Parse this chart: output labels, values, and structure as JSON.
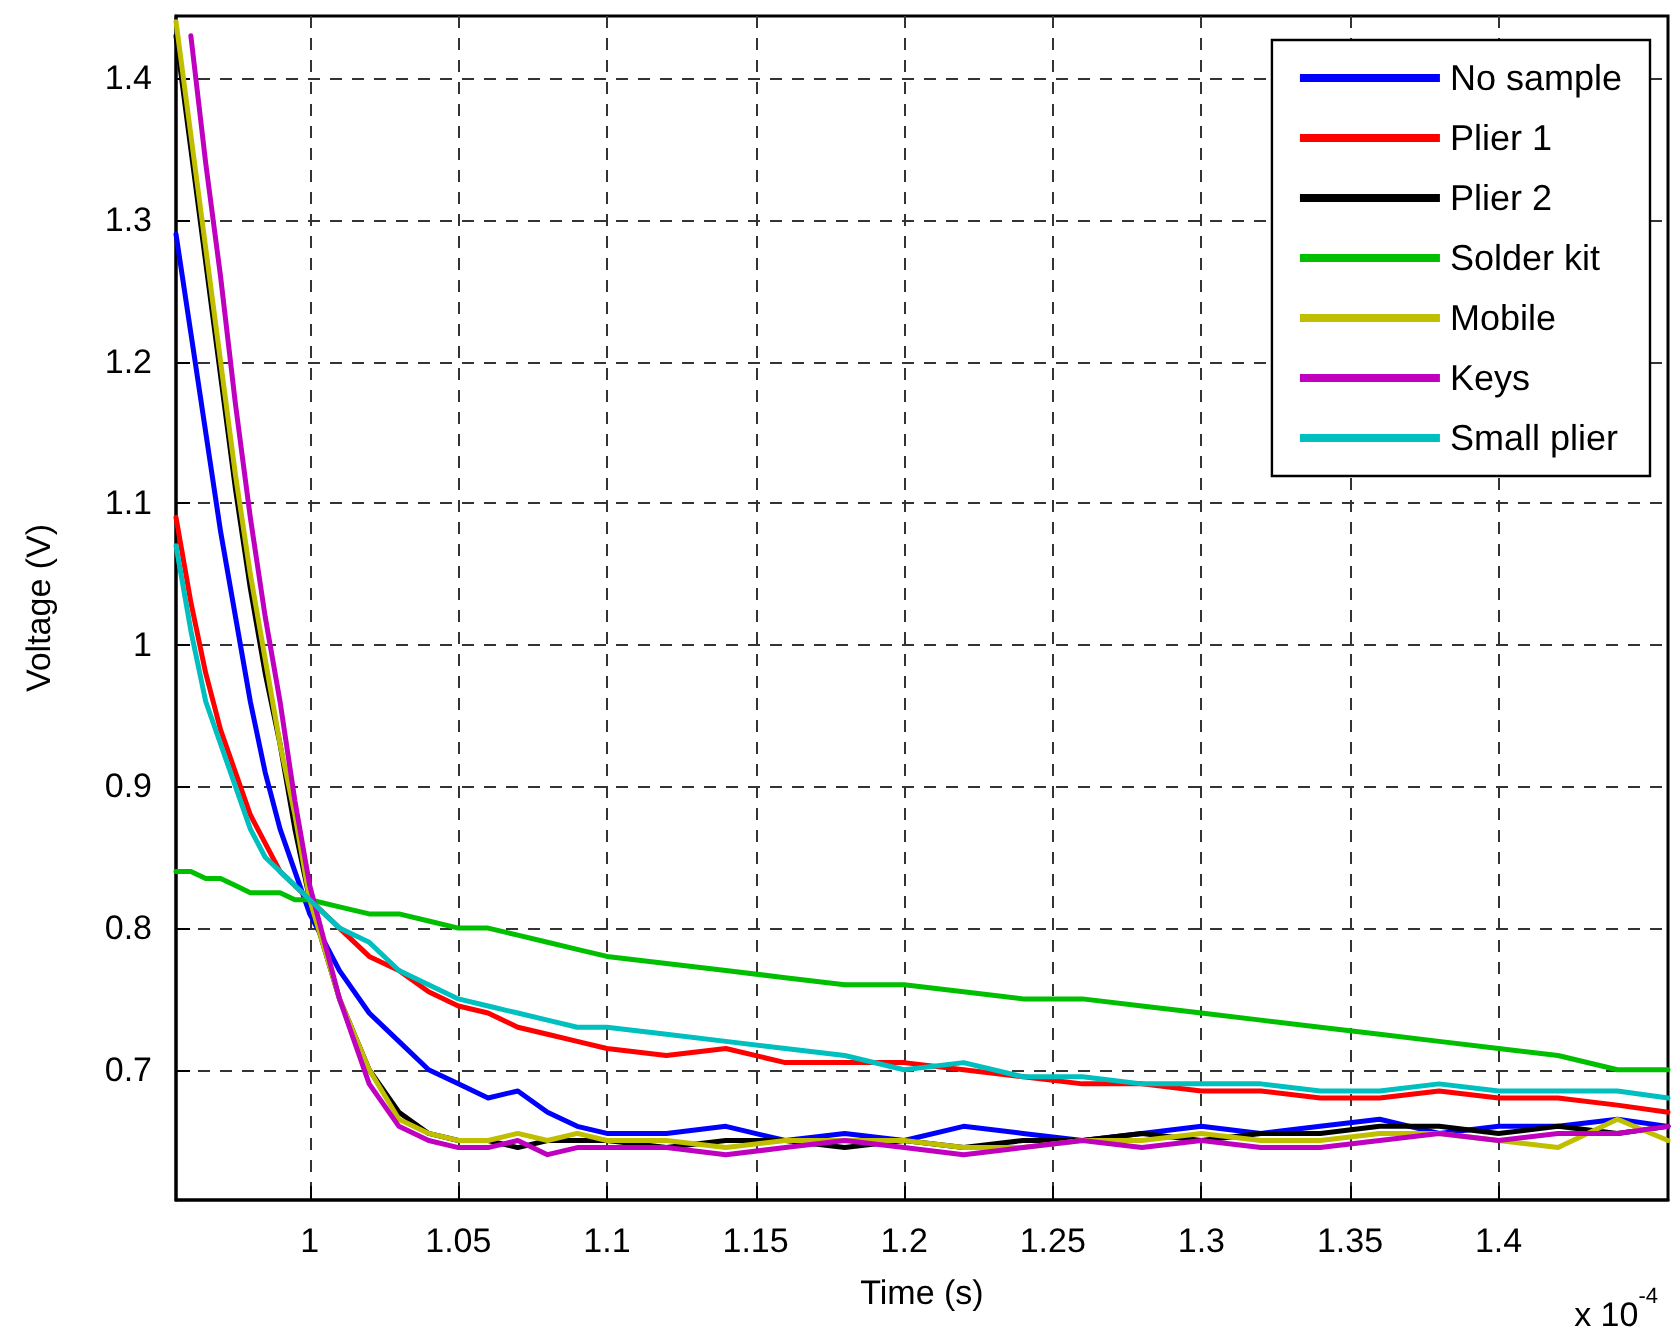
{
  "chart_data": {
    "type": "line",
    "xlabel": "Time (s)",
    "ylabel": "Voltage (V)",
    "annotations": [
      "x 10$^{-4}$"
    ],
    "x": [
      0.955,
      0.96,
      0.965,
      0.97,
      0.975,
      0.98,
      0.985,
      0.99,
      0.995,
      1.0,
      1.01,
      1.02,
      1.03,
      1.04,
      1.05,
      1.06,
      1.07,
      1.08,
      1.09,
      1.1,
      1.12,
      1.14,
      1.16,
      1.18,
      1.2,
      1.22,
      1.24,
      1.26,
      1.28,
      1.3,
      1.32,
      1.34,
      1.36,
      1.38,
      1.4,
      1.42,
      1.44,
      1.457
    ],
    "series": [
      {
        "name": "No sample",
        "color": "#0000ff",
        "values": [
          1.29,
          1.22,
          1.15,
          1.08,
          1.02,
          0.96,
          0.91,
          0.87,
          0.84,
          0.81,
          0.77,
          0.74,
          0.72,
          0.7,
          0.69,
          0.68,
          0.685,
          0.67,
          0.66,
          0.655,
          0.655,
          0.66,
          0.65,
          0.655,
          0.65,
          0.66,
          0.655,
          0.65,
          0.655,
          0.66,
          0.655,
          0.66,
          0.665,
          0.655,
          0.66,
          0.66,
          0.665,
          0.66
        ]
      },
      {
        "name": "Plier 1",
        "color": "#ff0000",
        "values": [
          1.09,
          1.03,
          0.98,
          0.94,
          0.91,
          0.88,
          0.86,
          0.84,
          0.83,
          0.82,
          0.8,
          0.78,
          0.77,
          0.755,
          0.745,
          0.74,
          0.73,
          0.725,
          0.72,
          0.715,
          0.71,
          0.715,
          0.705,
          0.705,
          0.705,
          0.7,
          0.695,
          0.69,
          0.69,
          0.685,
          0.685,
          0.68,
          0.68,
          0.685,
          0.68,
          0.68,
          0.675,
          0.67
        ]
      },
      {
        "name": "Plier 2",
        "color": "#000000",
        "values": [
          1.43,
          1.35,
          1.27,
          1.19,
          1.11,
          1.04,
          0.98,
          0.93,
          0.87,
          0.82,
          0.75,
          0.7,
          0.67,
          0.655,
          0.65,
          0.65,
          0.645,
          0.65,
          0.65,
          0.65,
          0.645,
          0.65,
          0.65,
          0.645,
          0.65,
          0.645,
          0.65,
          0.65,
          0.655,
          0.65,
          0.655,
          0.655,
          0.66,
          0.66,
          0.655,
          0.66,
          0.655,
          0.66
        ]
      },
      {
        "name": "Solder kit",
        "color": "#00bf00",
        "values": [
          0.84,
          0.84,
          0.835,
          0.835,
          0.83,
          0.825,
          0.825,
          0.825,
          0.82,
          0.82,
          0.815,
          0.81,
          0.81,
          0.805,
          0.8,
          0.8,
          0.795,
          0.79,
          0.785,
          0.78,
          0.775,
          0.77,
          0.765,
          0.76,
          0.76,
          0.755,
          0.75,
          0.75,
          0.745,
          0.74,
          0.735,
          0.73,
          0.725,
          0.72,
          0.715,
          0.71,
          0.7,
          0.7
        ]
      },
      {
        "name": "Mobile",
        "color": "#bfbf00",
        "values": [
          1.44,
          1.36,
          1.28,
          1.2,
          1.12,
          1.05,
          0.99,
          0.93,
          0.88,
          0.82,
          0.75,
          0.7,
          0.665,
          0.655,
          0.65,
          0.65,
          0.655,
          0.65,
          0.655,
          0.65,
          0.65,
          0.645,
          0.65,
          0.65,
          0.65,
          0.645,
          0.645,
          0.65,
          0.65,
          0.655,
          0.65,
          0.65,
          0.655,
          0.655,
          0.65,
          0.645,
          0.665,
          0.65
        ]
      },
      {
        "name": "Keys",
        "color": "#bf00bf",
        "values": [
          null,
          1.43,
          1.34,
          1.26,
          1.17,
          1.09,
          1.02,
          0.96,
          0.89,
          0.83,
          0.75,
          0.69,
          0.66,
          0.65,
          0.645,
          0.645,
          0.65,
          0.64,
          0.645,
          0.645,
          0.645,
          0.64,
          0.645,
          0.65,
          0.645,
          0.64,
          0.645,
          0.65,
          0.645,
          0.65,
          0.645,
          0.645,
          0.65,
          0.655,
          0.65,
          0.655,
          0.655,
          0.66
        ]
      },
      {
        "name": "Small plier",
        "color": "#00bfbf",
        "values": [
          1.07,
          1.01,
          0.96,
          0.93,
          0.9,
          0.87,
          0.85,
          0.84,
          0.83,
          0.82,
          0.8,
          0.79,
          0.77,
          0.76,
          0.75,
          0.745,
          0.74,
          0.735,
          0.73,
          0.73,
          0.725,
          0.72,
          0.715,
          0.71,
          0.7,
          0.705,
          0.695,
          0.695,
          0.69,
          0.69,
          0.69,
          0.685,
          0.685,
          0.69,
          0.685,
          0.685,
          0.685,
          0.68
        ]
      }
    ],
    "xlim": [
      0.955,
      1.457
    ],
    "xticks": [
      1,
      1.05,
      1.1,
      1.15,
      1.2,
      1.25,
      1.3,
      1.35,
      1.4
    ],
    "ylim": [
      0.608,
      1.444
    ],
    "yticks": [
      0.7,
      0.8,
      0.9,
      1,
      1.1,
      1.2,
      1.3,
      1.4
    ],
    "grid": true,
    "legend": "top right",
    "marker": "none",
    "line_style": "solid"
  }
}
